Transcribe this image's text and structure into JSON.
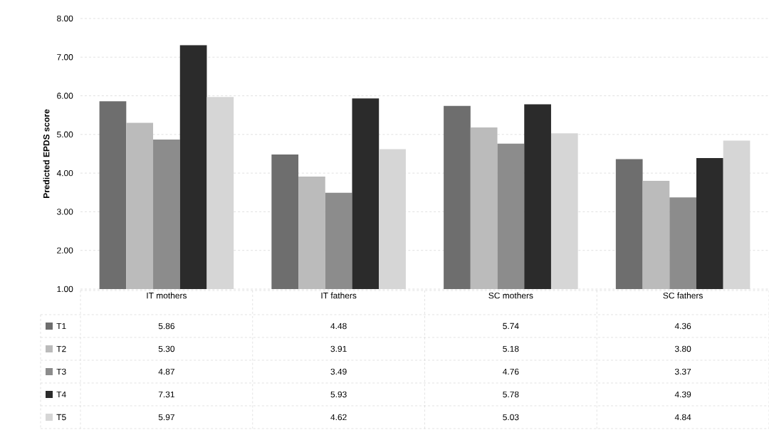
{
  "chart_data": {
    "type": "bar",
    "ylabel": "Predicted EPDS score",
    "categories": [
      "IT mothers",
      "IT fathers",
      "SC mothers",
      "SC fathers"
    ],
    "ylim": [
      1,
      8
    ],
    "yticks": [
      {
        "value": 1,
        "label": "1.00"
      },
      {
        "value": 2,
        "label": "2.00"
      },
      {
        "value": 3,
        "label": "3.00"
      },
      {
        "value": 4,
        "label": "4.00"
      },
      {
        "value": 5,
        "label": "5.00"
      },
      {
        "value": 6,
        "label": "6.00"
      },
      {
        "value": 7,
        "label": "7.00"
      },
      {
        "value": 8,
        "label": "8.00"
      }
    ],
    "grid": "y",
    "legend": "bottom left",
    "series": [
      {
        "name": "T1",
        "color": "#6e6e6e",
        "values": [
          5.86,
          4.48,
          5.74,
          4.36
        ],
        "value_labels": [
          "5.86",
          "4.48",
          "5.74",
          "4.36"
        ]
      },
      {
        "name": "T2",
        "color": "#bbbbbb",
        "values": [
          5.3,
          3.91,
          5.18,
          3.8
        ],
        "value_labels": [
          "5.30",
          "3.91",
          "5.18",
          "3.80"
        ]
      },
      {
        "name": "T3",
        "color": "#8c8c8c",
        "values": [
          4.87,
          3.49,
          4.76,
          3.37
        ],
        "value_labels": [
          "4.87",
          "3.49",
          "4.76",
          "3.37"
        ]
      },
      {
        "name": "T4",
        "color": "#2b2b2b",
        "values": [
          7.31,
          5.93,
          5.78,
          4.39
        ],
        "value_labels": [
          "7.31",
          "5.93",
          "5.78",
          "4.39"
        ]
      },
      {
        "name": "T5",
        "color": "#d6d6d6",
        "values": [
          5.97,
          4.62,
          5.03,
          4.84
        ],
        "value_labels": [
          "5.97",
          "4.62",
          "5.03",
          "4.84"
        ]
      }
    ]
  }
}
